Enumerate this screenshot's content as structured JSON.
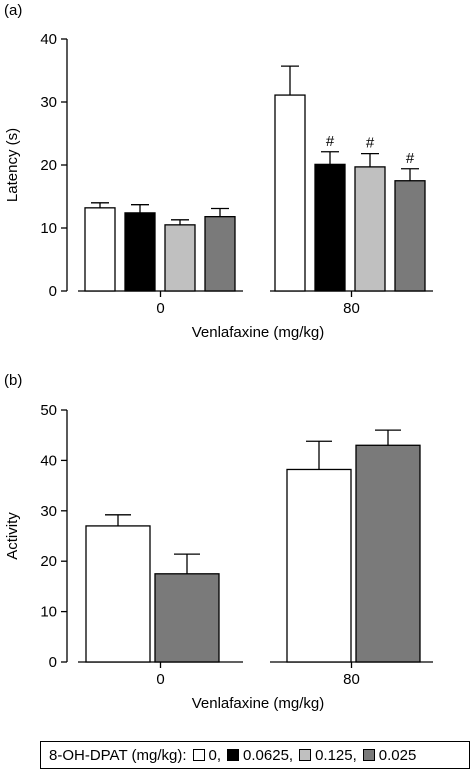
{
  "legend": {
    "title": "8-OH-DPAT (mg/kg):",
    "items": [
      {
        "label": "0,",
        "color": "#ffffff"
      },
      {
        "label": "0.0625,",
        "color": "#000000"
      },
      {
        "label": "0.125,",
        "color": "#c0c0c0"
      },
      {
        "label": "0.025",
        "color": "#7a7a7a"
      }
    ]
  },
  "chart_data": [
    {
      "type": "bar",
      "panel_label": "(a)",
      "categories": [
        "0",
        "80"
      ],
      "xlabel": "Venlafaxine  (mg/kg)",
      "ylabel": "Latency (s)",
      "ylim": [
        0,
        40
      ],
      "yticks": [
        0,
        10,
        20,
        30,
        40
      ],
      "series": [
        {
          "name": "0",
          "color": "#ffffff",
          "values": [
            13.2,
            31.1
          ],
          "errors": [
            0.8,
            4.6
          ],
          "marks": [
            "",
            ""
          ]
        },
        {
          "name": "0.0625",
          "color": "#000000",
          "values": [
            12.4,
            20.1
          ],
          "errors": [
            1.3,
            2.0
          ],
          "marks": [
            "",
            "#"
          ]
        },
        {
          "name": "0.125",
          "color": "#c0c0c0",
          "values": [
            10.5,
            19.7
          ],
          "errors": [
            0.8,
            2.1
          ],
          "marks": [
            "",
            "#"
          ]
        },
        {
          "name": "0.025",
          "color": "#7a7a7a",
          "values": [
            11.8,
            17.5
          ],
          "errors": [
            1.3,
            1.9
          ],
          "marks": [
            "",
            "#"
          ]
        }
      ]
    },
    {
      "type": "bar",
      "panel_label": "(b)",
      "categories": [
        "0",
        "80"
      ],
      "xlabel": "Venlafaxine (mg/kg)",
      "ylabel": "Activity",
      "ylim": [
        0,
        50
      ],
      "yticks": [
        0,
        10,
        20,
        30,
        40,
        50
      ],
      "series": [
        {
          "name": "0",
          "color": "#ffffff",
          "values": [
            27,
            38.2
          ],
          "errors": [
            2.2,
            5.6
          ]
        },
        {
          "name": "0.025",
          "color": "#7a7a7a",
          "values": [
            17.5,
            43
          ],
          "errors": [
            3.9,
            3.0
          ]
        }
      ]
    }
  ]
}
